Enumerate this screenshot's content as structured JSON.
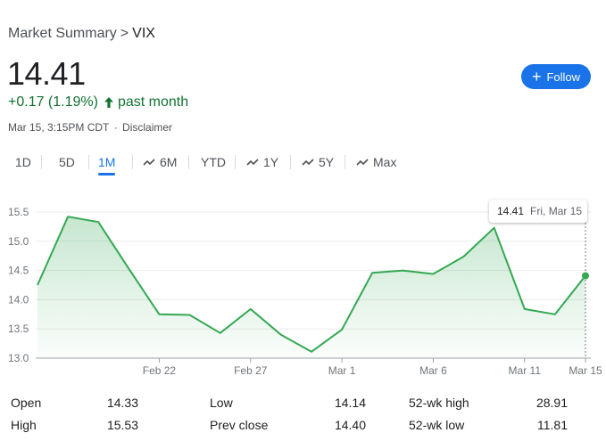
{
  "breadcrumb": {
    "parent": "Market Summary",
    "separator": ">",
    "current": "VIX"
  },
  "quote": {
    "price": "14.41",
    "change": "+0.17 (1.19%)",
    "period": "past month",
    "timestamp": "Mar 15, 3:15PM CDT",
    "disclaimer": "Disclaimer",
    "positive_color": "#137333"
  },
  "follow": {
    "label": "Follow",
    "color": "#1a73e8"
  },
  "ranges": [
    {
      "label": "1D",
      "active": false,
      "trend_icon": false
    },
    {
      "label": "5D",
      "active": false,
      "trend_icon": false
    },
    {
      "label": "1M",
      "active": true,
      "trend_icon": false
    },
    {
      "label": "6M",
      "active": false,
      "trend_icon": true
    },
    {
      "label": "YTD",
      "active": false,
      "trend_icon": false
    },
    {
      "label": "1Y",
      "active": false,
      "trend_icon": true
    },
    {
      "label": "5Y",
      "active": false,
      "trend_icon": true
    },
    {
      "label": "Max",
      "active": false,
      "trend_icon": true
    }
  ],
  "tooltip": {
    "value": "14.41",
    "date": "Fri, Mar 15"
  },
  "chart_data": {
    "type": "line",
    "title": "",
    "xlabel": "",
    "ylabel": "",
    "ylim": [
      13.0,
      15.5
    ],
    "yticks": [
      "15.5",
      "15.0",
      "14.5",
      "14.0",
      "13.5",
      "13.0"
    ],
    "xticks": [
      {
        "label": "Feb 22",
        "date": "Feb 22"
      },
      {
        "label": "Feb 27",
        "date": "Feb 27"
      },
      {
        "label": "Mar 1",
        "date": "Mar 1"
      },
      {
        "label": "Mar 6",
        "date": "Mar 6"
      },
      {
        "label": "Mar 11",
        "date": "Mar 11"
      },
      {
        "label": "Mar 15",
        "date": "Mar 15"
      }
    ],
    "grid": true,
    "line_color": "#34a853",
    "series": [
      {
        "values": [
          {
            "date": "Feb 15",
            "value": 14.25
          },
          {
            "date": "Feb 16",
            "value": 15.42
          },
          {
            "date": "Feb 20",
            "value": 15.33
          },
          {
            "date": "Feb 21",
            "value": 14.53
          },
          {
            "date": "Feb 22",
            "value": 13.75
          },
          {
            "date": "Feb 23",
            "value": 13.74
          },
          {
            "date": "Feb 26",
            "value": 13.43
          },
          {
            "date": "Feb 27",
            "value": 13.84
          },
          {
            "date": "Feb 28",
            "value": 13.4
          },
          {
            "date": "Feb 29",
            "value": 13.11
          },
          {
            "date": "Mar 1",
            "value": 13.49
          },
          {
            "date": "Mar 4",
            "value": 14.46
          },
          {
            "date": "Mar 5",
            "value": 14.5
          },
          {
            "date": "Mar 6",
            "value": 14.44
          },
          {
            "date": "Mar 7",
            "value": 14.74
          },
          {
            "date": "Mar 8",
            "value": 15.23
          },
          {
            "date": "Mar 11",
            "value": 13.84
          },
          {
            "date": "Mar 12",
            "value": 13.75
          },
          {
            "date": "Mar 15",
            "value": 14.41
          }
        ]
      }
    ]
  },
  "stats": [
    {
      "label": "Open",
      "value": "14.33"
    },
    {
      "label": "High",
      "value": "15.53"
    },
    {
      "label": "Low",
      "value": "14.14"
    },
    {
      "label": "Prev close",
      "value": "14.40"
    },
    {
      "label": "52-wk high",
      "value": "28.91"
    },
    {
      "label": "52-wk low",
      "value": "11.81"
    }
  ]
}
